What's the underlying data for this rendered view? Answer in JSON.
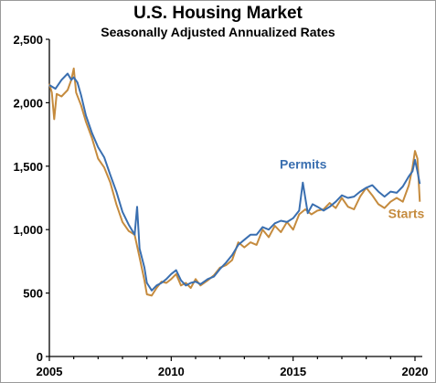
{
  "chart_data": {
    "type": "line",
    "title": "U.S. Housing Market",
    "subtitle": "Seasonally Adjusted Annualized Rates",
    "xlabel": "",
    "ylabel": "",
    "xlim": [
      2005,
      2020.3
    ],
    "ylim": [
      0,
      2500
    ],
    "x_ticks": [
      2005,
      2010,
      2015,
      2020
    ],
    "x_tick_labels": [
      "2005",
      "2010",
      "2015",
      "2020"
    ],
    "y_ticks": [
      0,
      500,
      1000,
      1500,
      2000,
      2500
    ],
    "y_tick_labels": [
      "0",
      "500",
      "1,000",
      "1,500",
      "2,000",
      "2,500"
    ],
    "grid": false,
    "legend": "inline labels",
    "series": [
      {
        "name": "Permits",
        "color": "#3a6fb0",
        "points": [
          [
            2005.0,
            2140
          ],
          [
            2005.25,
            2110
          ],
          [
            2005.5,
            2180
          ],
          [
            2005.75,
            2230
          ],
          [
            2005.9,
            2180
          ],
          [
            2006.0,
            2200
          ],
          [
            2006.15,
            2160
          ],
          [
            2006.3,
            2060
          ],
          [
            2006.5,
            1900
          ],
          [
            2006.75,
            1760
          ],
          [
            2007.0,
            1650
          ],
          [
            2007.25,
            1570
          ],
          [
            2007.5,
            1430
          ],
          [
            2007.75,
            1300
          ],
          [
            2008.0,
            1140
          ],
          [
            2008.25,
            1040
          ],
          [
            2008.5,
            960
          ],
          [
            2008.6,
            1180
          ],
          [
            2008.7,
            850
          ],
          [
            2008.9,
            700
          ],
          [
            2009.0,
            580
          ],
          [
            2009.2,
            520
          ],
          [
            2009.4,
            560
          ],
          [
            2009.6,
            580
          ],
          [
            2009.8,
            610
          ],
          [
            2010.0,
            650
          ],
          [
            2010.2,
            680
          ],
          [
            2010.4,
            600
          ],
          [
            2010.6,
            560
          ],
          [
            2010.8,
            580
          ],
          [
            2011.0,
            590
          ],
          [
            2011.2,
            570
          ],
          [
            2011.5,
            610
          ],
          [
            2011.75,
            630
          ],
          [
            2012.0,
            690
          ],
          [
            2012.25,
            740
          ],
          [
            2012.5,
            800
          ],
          [
            2012.75,
            880
          ],
          [
            2013.0,
            920
          ],
          [
            2013.25,
            960
          ],
          [
            2013.5,
            960
          ],
          [
            2013.75,
            1020
          ],
          [
            2014.0,
            1000
          ],
          [
            2014.25,
            1050
          ],
          [
            2014.5,
            1070
          ],
          [
            2014.75,
            1060
          ],
          [
            2015.0,
            1090
          ],
          [
            2015.25,
            1150
          ],
          [
            2015.4,
            1370
          ],
          [
            2015.6,
            1130
          ],
          [
            2015.8,
            1200
          ],
          [
            2016.0,
            1180
          ],
          [
            2016.25,
            1150
          ],
          [
            2016.5,
            1180
          ],
          [
            2016.75,
            1220
          ],
          [
            2017.0,
            1270
          ],
          [
            2017.25,
            1250
          ],
          [
            2017.5,
            1260
          ],
          [
            2017.75,
            1300
          ],
          [
            2018.0,
            1330
          ],
          [
            2018.25,
            1350
          ],
          [
            2018.5,
            1300
          ],
          [
            2018.75,
            1260
          ],
          [
            2019.0,
            1300
          ],
          [
            2019.25,
            1290
          ],
          [
            2019.5,
            1340
          ],
          [
            2019.75,
            1420
          ],
          [
            2019.9,
            1460
          ],
          [
            2020.0,
            1550
          ],
          [
            2020.1,
            1460
          ],
          [
            2020.2,
            1360
          ]
        ]
      },
      {
        "name": "Starts",
        "color": "#c58b3e",
        "points": [
          [
            2005.0,
            2150
          ],
          [
            2005.1,
            2080
          ],
          [
            2005.2,
            1870
          ],
          [
            2005.3,
            2070
          ],
          [
            2005.5,
            2050
          ],
          [
            2005.75,
            2100
          ],
          [
            2005.9,
            2180
          ],
          [
            2006.0,
            2270
          ],
          [
            2006.1,
            2080
          ],
          [
            2006.3,
            1980
          ],
          [
            2006.5,
            1850
          ],
          [
            2006.75,
            1720
          ],
          [
            2007.0,
            1560
          ],
          [
            2007.25,
            1490
          ],
          [
            2007.5,
            1370
          ],
          [
            2007.75,
            1200
          ],
          [
            2008.0,
            1060
          ],
          [
            2008.25,
            990
          ],
          [
            2008.5,
            960
          ],
          [
            2008.7,
            780
          ],
          [
            2008.9,
            600
          ],
          [
            2009.0,
            490
          ],
          [
            2009.2,
            480
          ],
          [
            2009.4,
            540
          ],
          [
            2009.6,
            590
          ],
          [
            2009.8,
            580
          ],
          [
            2010.0,
            610
          ],
          [
            2010.2,
            650
          ],
          [
            2010.4,
            560
          ],
          [
            2010.6,
            580
          ],
          [
            2010.8,
            540
          ],
          [
            2011.0,
            610
          ],
          [
            2011.2,
            560
          ],
          [
            2011.5,
            600
          ],
          [
            2011.75,
            640
          ],
          [
            2012.0,
            700
          ],
          [
            2012.25,
            720
          ],
          [
            2012.5,
            760
          ],
          [
            2012.75,
            900
          ],
          [
            2013.0,
            860
          ],
          [
            2013.25,
            900
          ],
          [
            2013.5,
            880
          ],
          [
            2013.75,
            1000
          ],
          [
            2014.0,
            940
          ],
          [
            2014.25,
            1030
          ],
          [
            2014.5,
            980
          ],
          [
            2014.75,
            1060
          ],
          [
            2015.0,
            1000
          ],
          [
            2015.25,
            1120
          ],
          [
            2015.5,
            1160
          ],
          [
            2015.75,
            1120
          ],
          [
            2016.0,
            1150
          ],
          [
            2016.25,
            1160
          ],
          [
            2016.5,
            1210
          ],
          [
            2016.75,
            1170
          ],
          [
            2017.0,
            1250
          ],
          [
            2017.25,
            1180
          ],
          [
            2017.5,
            1160
          ],
          [
            2017.75,
            1260
          ],
          [
            2018.0,
            1330
          ],
          [
            2018.25,
            1270
          ],
          [
            2018.5,
            1200
          ],
          [
            2018.75,
            1170
          ],
          [
            2019.0,
            1220
          ],
          [
            2019.25,
            1250
          ],
          [
            2019.5,
            1220
          ],
          [
            2019.75,
            1350
          ],
          [
            2019.9,
            1490
          ],
          [
            2020.0,
            1620
          ],
          [
            2020.1,
            1560
          ],
          [
            2020.2,
            1220
          ]
        ]
      }
    ]
  }
}
